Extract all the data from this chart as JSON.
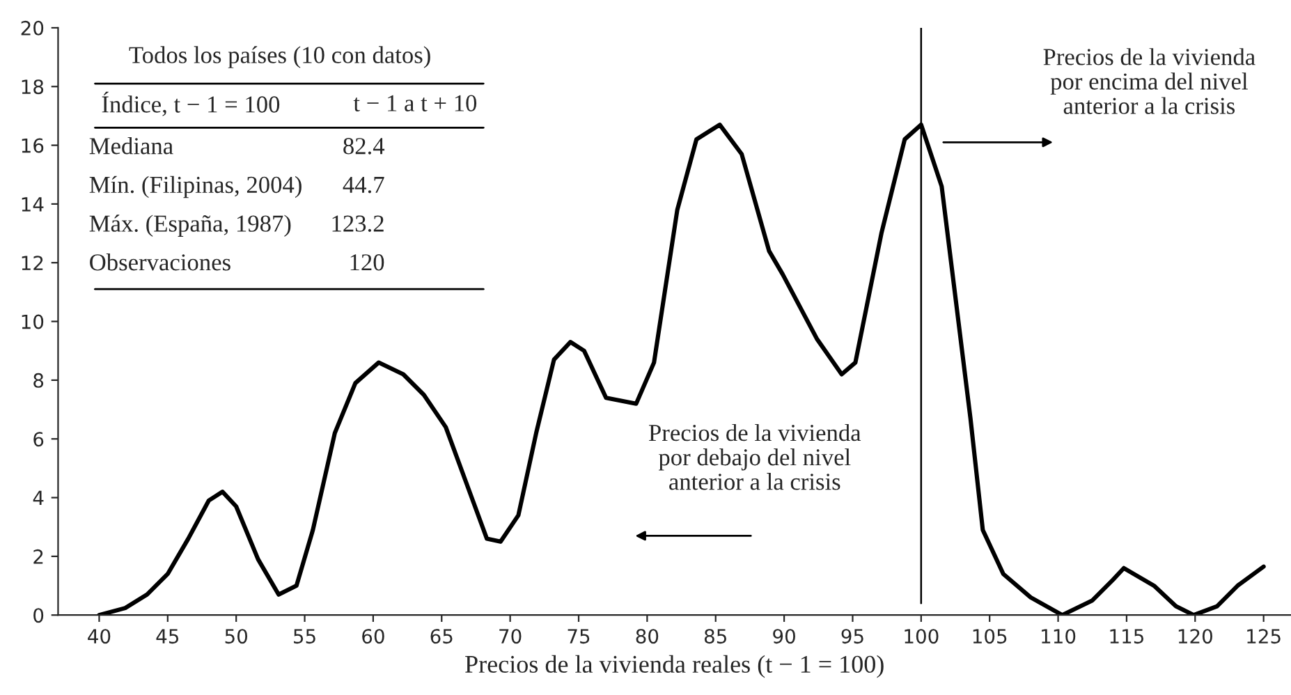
{
  "chart_data": {
    "type": "line",
    "xlabel": "Precios de la vivienda reales (t − 1 = 100)",
    "x": [
      40,
      41.9,
      43.5,
      45,
      46.5,
      48,
      49,
      50,
      51.6,
      53.1,
      54.4,
      55.6,
      57.2,
      58.7,
      60.4,
      62.2,
      63.7,
      65.3,
      66.8,
      68.3,
      69.3,
      70.6,
      71.9,
      73.2,
      74.4,
      75.4,
      77,
      79.2,
      80.5,
      82.2,
      83.6,
      85.3,
      86.9,
      88.9,
      89.9,
      92.4,
      94.2,
      95.2,
      97.1,
      98.8,
      100,
      101.5,
      103.6,
      104.5,
      106,
      108,
      110.3,
      112.5,
      114,
      114.8,
      117,
      118.6,
      119.9,
      121.6,
      123.1,
      125
    ],
    "series": [
      {
        "color": "#000000",
        "values": [
          0,
          0.24,
          0.7,
          1.4,
          2.6,
          3.9,
          4.2,
          3.7,
          1.9,
          0.7,
          1.0,
          2.9,
          6.2,
          7.9,
          8.6,
          8.2,
          7.5,
          6.4,
          4.5,
          2.6,
          2.5,
          3.4,
          6.2,
          8.7,
          9.3,
          9.0,
          7.4,
          7.2,
          8.6,
          13.8,
          16.2,
          16.7,
          15.7,
          12.4,
          11.6,
          9.4,
          8.2,
          8.6,
          13.0,
          16.2,
          16.7,
          14.6,
          6.7,
          2.9,
          1.4,
          0.6,
          0,
          0.5,
          1.2,
          1.6,
          1.0,
          0.3,
          0,
          0.3,
          1.0,
          1.65
        ]
      }
    ],
    "xlim": [
      37,
      127
    ],
    "xticks": [
      40,
      45,
      50,
      55,
      60,
      65,
      70,
      75,
      80,
      85,
      90,
      95,
      100,
      105,
      110,
      115,
      120,
      125
    ],
    "ylim": [
      0,
      20
    ],
    "yticks": [
      0,
      2,
      4,
      6,
      8,
      10,
      12,
      14,
      16,
      18,
      20
    ],
    "grid": false,
    "legend": false,
    "marker": "none",
    "line_style": "solid",
    "ref_lines": [
      {
        "axis": "x",
        "value": 100,
        "color": "#000000"
      }
    ],
    "annotations": [
      "Todos los países (10 con datos)",
      "Índice, t − 1 = 100",
      "t − 1 a t + 10",
      "Mediana",
      "82.4",
      "Mín. (Filipinas, 2004)",
      "44.7",
      "Máx. (España, 1987)",
      "123.2",
      "Observaciones",
      "120",
      "Precios de la vivienda\npor debajo del nivel\nanterior a la crisis",
      "Precios de la vivienda\npor encima del nivel\nanterior a la crisis"
    ]
  }
}
